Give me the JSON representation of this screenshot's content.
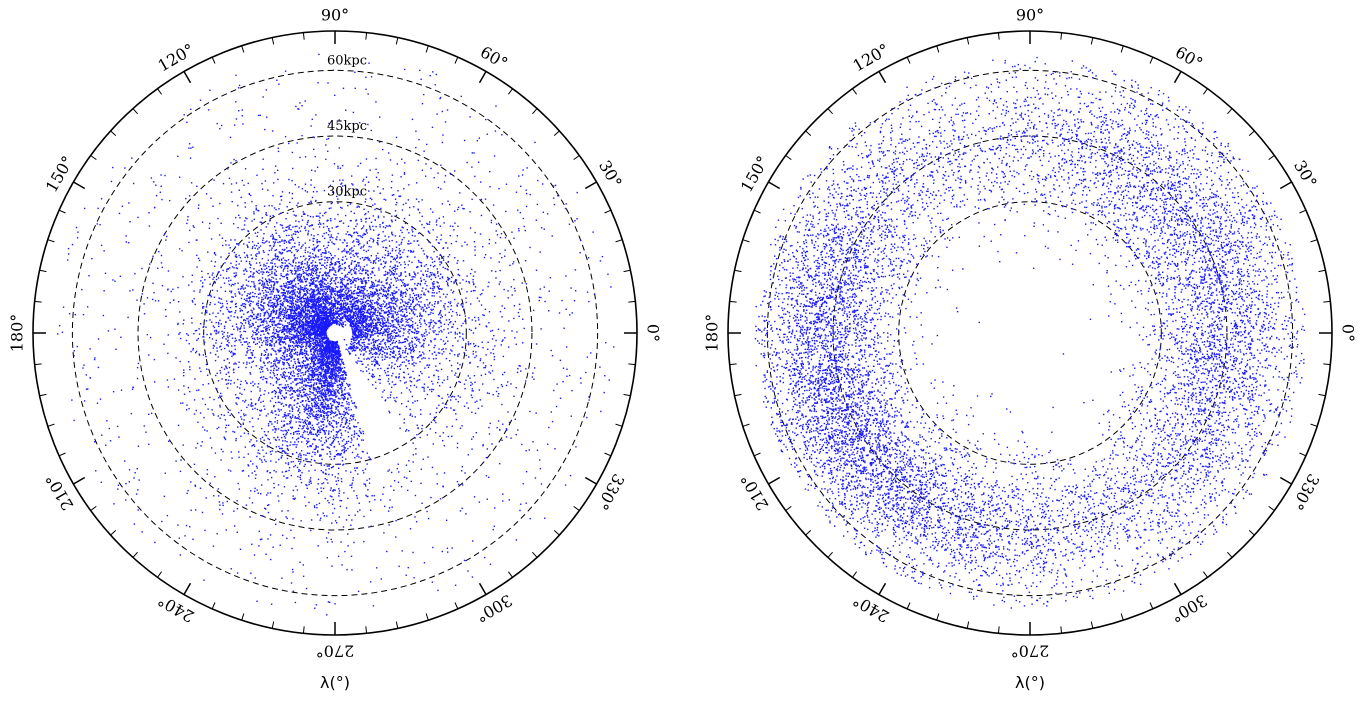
{
  "chart_data": [
    {
      "type": "scatter",
      "projection": "polar",
      "axis_label": "λ(°)",
      "angle_ticks_major": [
        "0°",
        "30°",
        "60°",
        "90°",
        "120°",
        "150°",
        "180°",
        "210°",
        "240°",
        "270°",
        "300°",
        "330°"
      ],
      "angle_tick_values": [
        0,
        30,
        60,
        90,
        120,
        150,
        180,
        210,
        240,
        270,
        300,
        330
      ],
      "minor_tick_step_deg": 6,
      "radius_max_kpc": 69,
      "ring_radii_kpc": [
        30,
        45,
        60
      ],
      "ring_labels": [
        "30kpc",
        "45kpc",
        "60kpc"
      ],
      "point_color": "#1a1aff",
      "point_counts": {
        "core": 9500,
        "scattered": 1300
      },
      "density_description": "dense clump within 30 kpc peaking near lambda 270-300, sparse halo out to ~60 kpc, empty wedge toward lambda ~300",
      "gap_wedge_deg": [
        286,
        304
      ]
    },
    {
      "type": "scatter",
      "projection": "polar",
      "axis_label": "λ(°)",
      "angle_ticks_major": [
        "0°",
        "30°",
        "60°",
        "90°",
        "120°",
        "150°",
        "180°",
        "210°",
        "240°",
        "270°",
        "300°",
        "330°"
      ],
      "angle_tick_values": [
        0,
        30,
        60,
        90,
        120,
        150,
        180,
        210,
        240,
        270,
        300,
        330
      ],
      "minor_tick_step_deg": 6,
      "radius_max_kpc": 69,
      "ring_radii_kpc": [
        30,
        45,
        60
      ],
      "ring_labels": [],
      "point_color": "#1a1aff",
      "point_counts": {
        "core": 10500,
        "scattered": 900
      },
      "density_description": "broad annulus between ~35 and ~62 kpc, densest toward lambda 150-250 and 330-30, empty wedge toward lambda ~300",
      "gap_wedge_deg": [
        288,
        305
      ]
    }
  ]
}
